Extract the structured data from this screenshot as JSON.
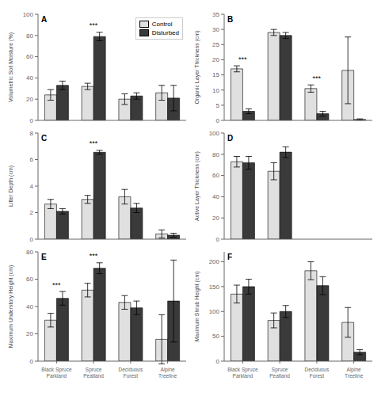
{
  "chart_data": [
    {
      "type": "bar",
      "title": "A",
      "ylabel": "Volumetric Soil Moisture (%)",
      "categories": [
        "Black Spruce\nParkland",
        "Spruce\nPeatland",
        "Deciduous\nForest",
        "Alpine\nTreeline"
      ],
      "series": [
        {
          "name": "Control",
          "color": "#e0e0e0",
          "values": [
            24,
            32,
            20,
            26
          ],
          "errors": [
            5,
            3,
            5,
            7
          ]
        },
        {
          "name": "Disturbed",
          "color": "#3a3a3a",
          "values": [
            33,
            79,
            23,
            21
          ],
          "errors": [
            4,
            4,
            3,
            12
          ]
        }
      ],
      "ylim": [
        0,
        100
      ],
      "yticks": [
        0,
        20,
        40,
        60,
        80,
        100
      ],
      "grid": false,
      "tick_labels": "y",
      "legend": "upper right",
      "annotations": [
        {
          "text": "***",
          "x": "Spruce\nPeatland"
        }
      ]
    },
    {
      "type": "bar",
      "title": "B",
      "ylabel": "Organic Layer Thickness (cm)",
      "categories": [
        "Black Spruce\nParkland",
        "Spruce\nPeatland",
        "Deciduous\nForest",
        "Alpine\nTreeline"
      ],
      "series": [
        {
          "name": "Control",
          "color": "#e0e0e0",
          "values": [
            17,
            29,
            10.5,
            16.5
          ],
          "errors": [
            1.0,
            1.0,
            1.2,
            11
          ]
        },
        {
          "name": "Disturbed",
          "color": "#3a3a3a",
          "values": [
            3,
            28,
            2.2,
            0.3
          ],
          "errors": [
            0.8,
            1.0,
            0.8,
            0.2
          ]
        }
      ],
      "ylim": [
        0,
        35
      ],
      "yticks": [
        0,
        5,
        10,
        15,
        20,
        25,
        30,
        35
      ],
      "grid": false,
      "tick_labels": "y",
      "annotations": [
        {
          "text": "***",
          "x": "Black Spruce\nParkland"
        },
        {
          "text": "***",
          "x": "Deciduous\nForest"
        }
      ]
    },
    {
      "type": "bar",
      "title": "C",
      "ylabel": "Litter Depth (cm)",
      "categories": [
        "Black Spruce\nParkland",
        "Spruce\nPeatland",
        "Deciduous\nForest",
        "Alpine\nTreeline"
      ],
      "series": [
        {
          "name": "Control",
          "color": "#e0e0e0",
          "values": [
            2.65,
            3.0,
            3.2,
            0.4
          ],
          "errors": [
            0.35,
            0.3,
            0.55,
            0.3
          ]
        },
        {
          "name": "Disturbed",
          "color": "#3a3a3a",
          "values": [
            2.1,
            6.55,
            2.35,
            0.3
          ],
          "errors": [
            0.2,
            0.15,
            0.35,
            0.15
          ]
        }
      ],
      "ylim": [
        0,
        8
      ],
      "yticks": [
        0,
        2,
        4,
        6,
        8
      ],
      "grid": false,
      "tick_labels": "y",
      "annotations": [
        {
          "text": "***",
          "x": "Spruce\nPeatland"
        }
      ]
    },
    {
      "type": "bar",
      "title": "D",
      "ylabel": "Active Layer Thickness (cm)",
      "categories": [
        "Black Spruce\nParkland",
        "Spruce\nPeatland",
        "Deciduous\nForest",
        "Alpine\nTreeline"
      ],
      "series": [
        {
          "name": "Control",
          "color": "#e0e0e0",
          "values": [
            73,
            64,
            null,
            null
          ],
          "errors": [
            5,
            8,
            null,
            null
          ]
        },
        {
          "name": "Disturbed",
          "color": "#3a3a3a",
          "values": [
            72,
            82,
            null,
            null
          ],
          "errors": [
            6,
            5,
            null,
            null
          ]
        }
      ],
      "ylim": [
        0,
        100
      ],
      "yticks": [
        0,
        20,
        40,
        60,
        80,
        100
      ],
      "grid": false,
      "tick_labels": "y",
      "annotations": []
    },
    {
      "type": "bar",
      "title": "E",
      "ylabel": "Maximum Understory Height (cm)",
      "categories": [
        "Black Spruce\nParkland",
        "Spruce\nPeatland",
        "Deciduous\nForest",
        "Alpine\nTreeline"
      ],
      "series": [
        {
          "name": "Control",
          "color": "#e0e0e0",
          "values": [
            30,
            52,
            43,
            16
          ],
          "errors": [
            5,
            5,
            5,
            18
          ]
        },
        {
          "name": "Disturbed",
          "color": "#3a3a3a",
          "values": [
            46,
            68,
            39,
            44
          ],
          "errors": [
            5,
            4,
            5,
            30
          ]
        }
      ],
      "ylim": [
        0,
        80
      ],
      "yticks": [
        0,
        20,
        40,
        60,
        80
      ],
      "grid": false,
      "annotations": [
        {
          "text": "***",
          "x": "Black Spruce\nParkland"
        },
        {
          "text": "***",
          "x": "Spruce\nPeatland"
        }
      ]
    },
    {
      "type": "bar",
      "title": "F",
      "ylabel": "Maximum Shrub Height (cm)",
      "categories": [
        "Black Spruce\nParkland",
        "Spruce\nPeatland",
        "Deciduous\nForest",
        "Alpine\nTreeline"
      ],
      "series": [
        {
          "name": "Control",
          "color": "#e0e0e0",
          "values": [
            135,
            82,
            182,
            78
          ],
          "errors": [
            18,
            15,
            18,
            30
          ]
        },
        {
          "name": "Disturbed",
          "color": "#3a3a3a",
          "values": [
            150,
            100,
            152,
            18
          ],
          "errors": [
            15,
            12,
            18,
            5
          ]
        }
      ],
      "ylim": [
        0,
        220
      ],
      "yticks": [
        0,
        50,
        100,
        150,
        200
      ],
      "grid": false,
      "annotations": []
    }
  ]
}
